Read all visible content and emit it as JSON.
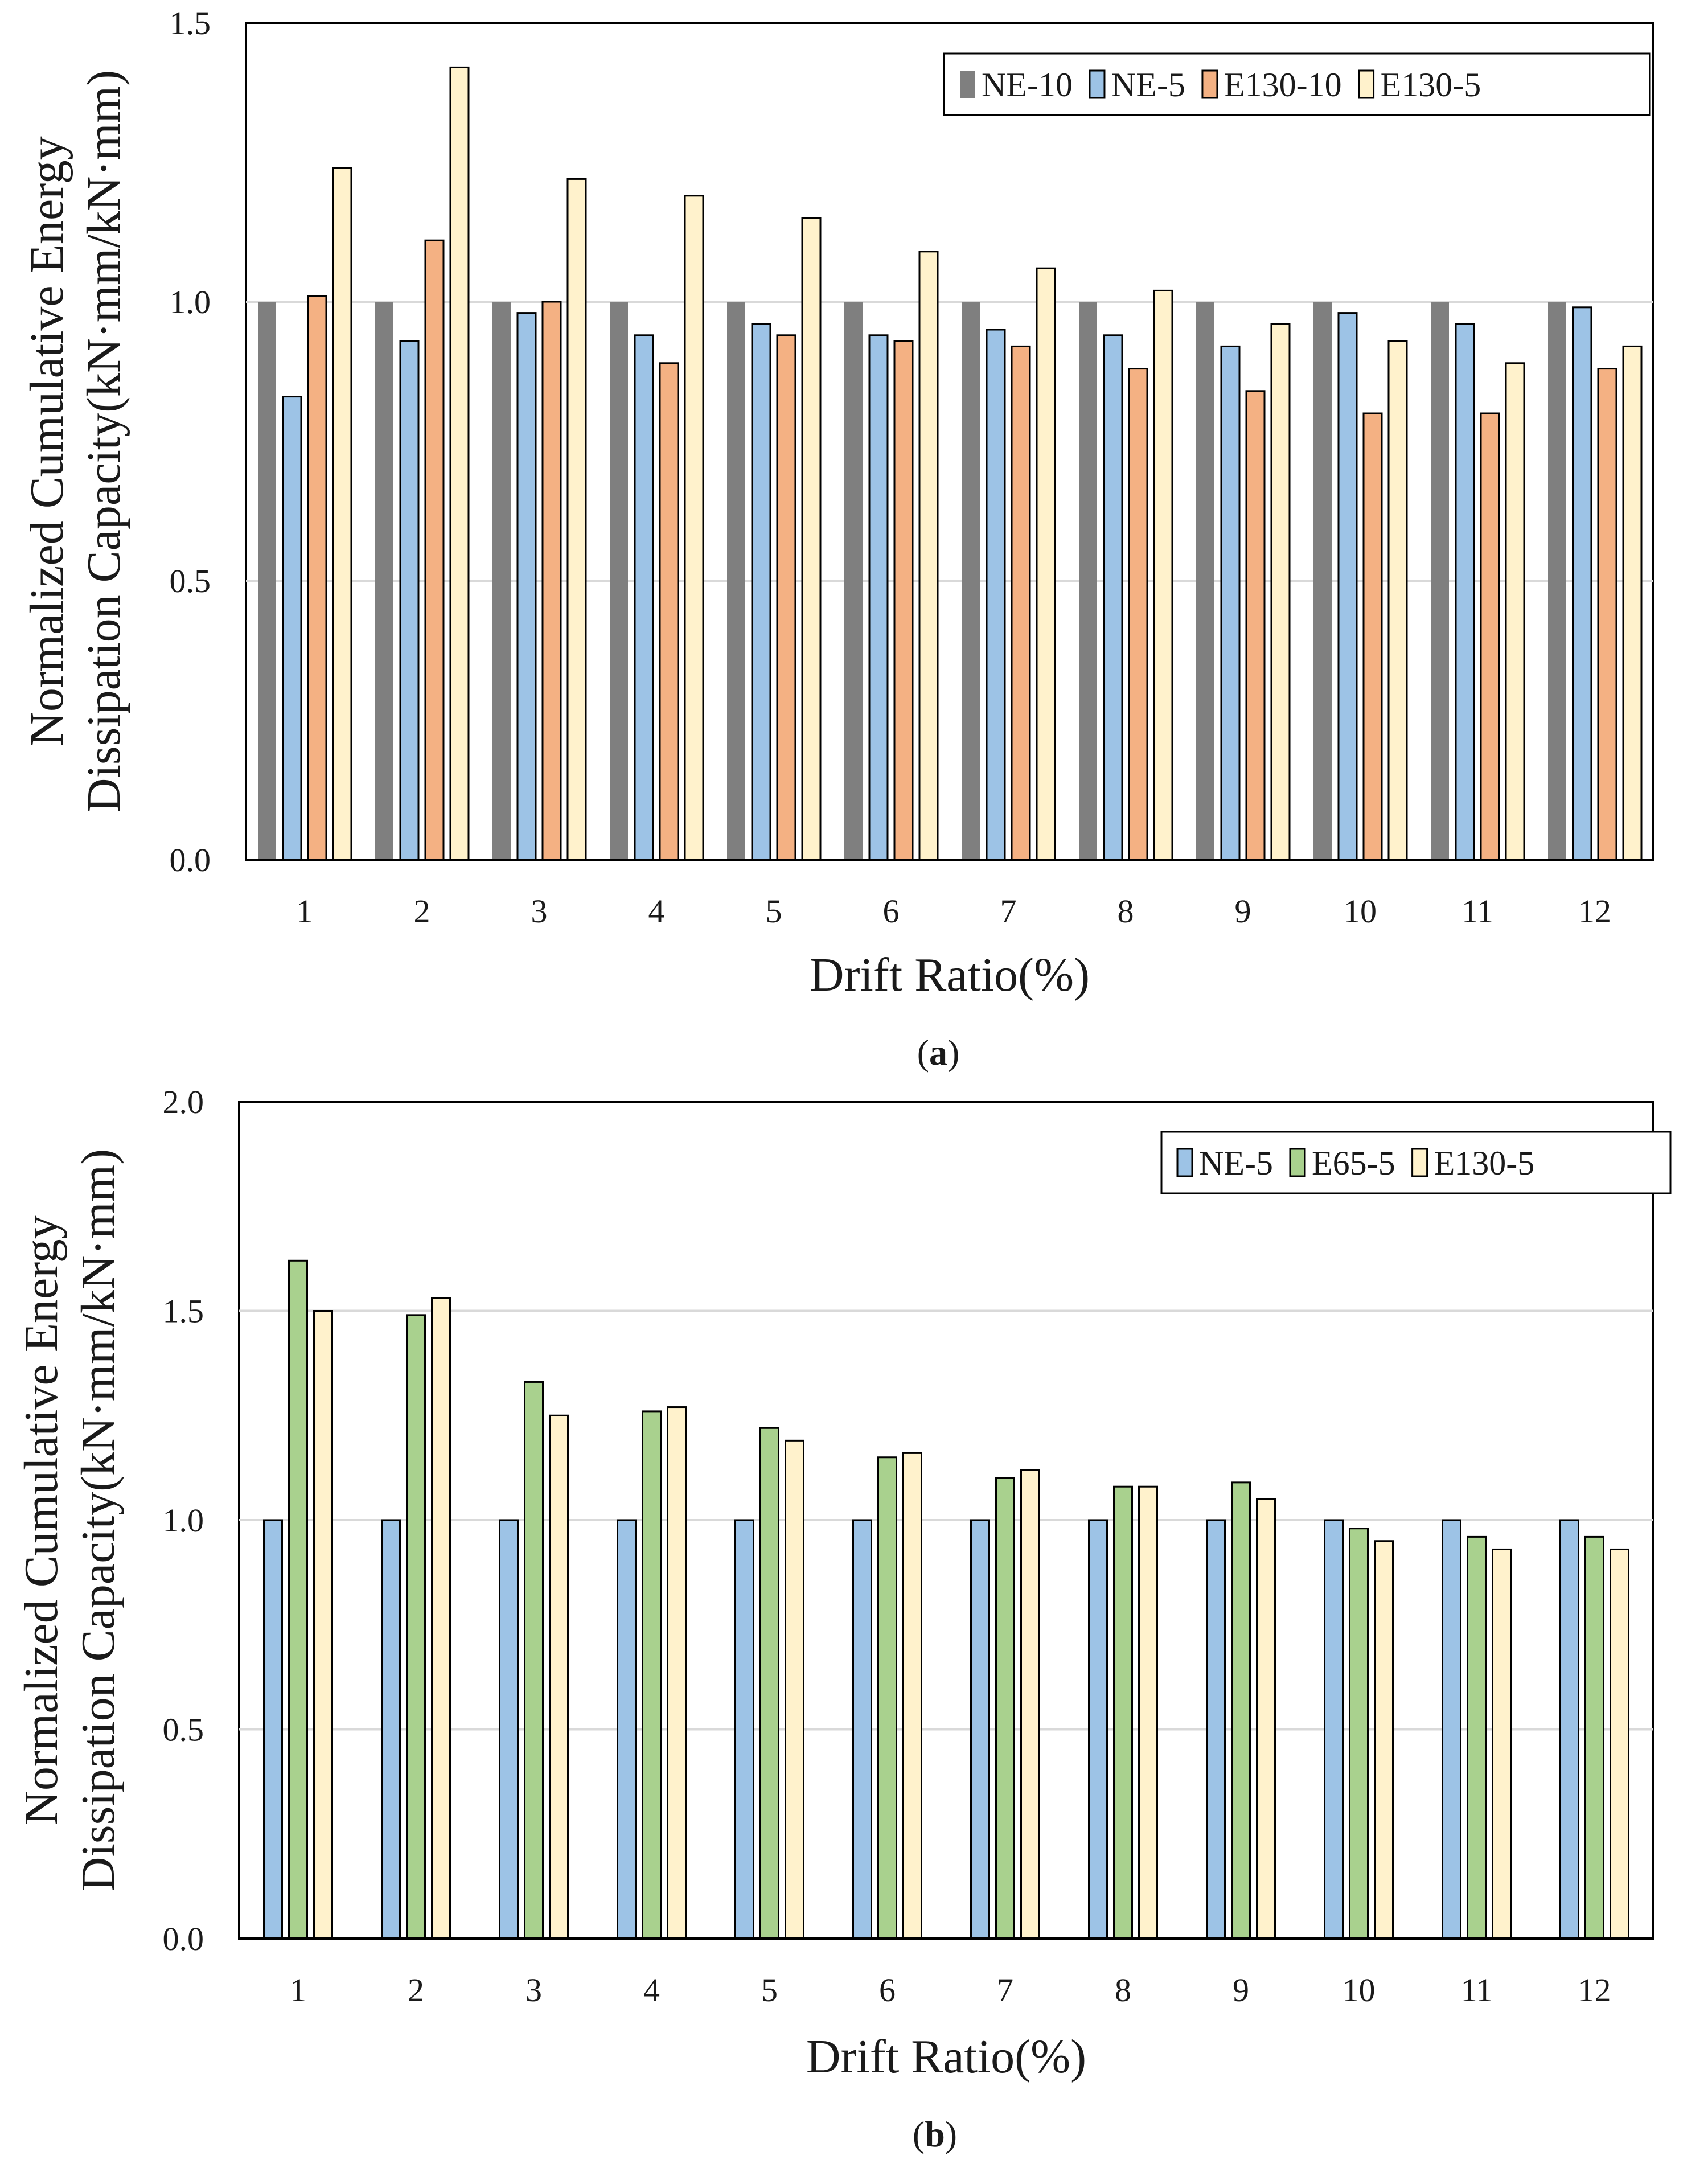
{
  "chart_data": [
    {
      "panel": "a",
      "caption_open": "(",
      "caption_letter": "a",
      "caption_close": ")",
      "type": "bar",
      "categories": [
        "1",
        "2",
        "3",
        "4",
        "5",
        "6",
        "7",
        "8",
        "9",
        "10",
        "11",
        "12"
      ],
      "xlabel": "Drift Ratio(%)",
      "ylabel_line1": "Normalized Cumulative Energy",
      "ylabel_line2": "Dissipation Capacity(kN·mm/kN·mm)",
      "ylim": [
        0,
        1.5
      ],
      "yticks": [
        "0.0",
        "0.5",
        "1.0",
        "1.5"
      ],
      "grid": true,
      "legend_position": "top-right",
      "series": [
        {
          "name": "NE-10",
          "color": "#7f7f7f",
          "values": [
            1.0,
            1.0,
            1.0,
            1.0,
            1.0,
            1.0,
            1.0,
            1.0,
            1.0,
            1.0,
            1.0,
            1.0
          ]
        },
        {
          "name": "NE-5",
          "color": "#9dc3e6",
          "values": [
            0.83,
            0.93,
            0.98,
            0.94,
            0.96,
            0.94,
            0.95,
            0.94,
            0.92,
            0.98,
            0.96,
            0.99
          ]
        },
        {
          "name": "E130-10",
          "color": "#f4b183",
          "values": [
            1.01,
            1.11,
            1.0,
            0.89,
            0.94,
            0.93,
            0.92,
            0.88,
            0.84,
            0.8,
            0.8,
            0.88
          ]
        },
        {
          "name": "E130-5",
          "color": "#fff2cc",
          "values": [
            1.24,
            1.42,
            1.22,
            1.19,
            1.15,
            1.09,
            1.06,
            1.02,
            0.96,
            0.93,
            0.89,
            0.92
          ]
        }
      ]
    },
    {
      "panel": "b",
      "caption_open": "(",
      "caption_letter": "b",
      "caption_close": ")",
      "type": "bar",
      "categories": [
        "1",
        "2",
        "3",
        "4",
        "5",
        "6",
        "7",
        "8",
        "9",
        "10",
        "11",
        "12"
      ],
      "xlabel": "Drift Ratio(%)",
      "ylabel_line1": "Normalized Cumulative Energy",
      "ylabel_line2": "Dissipation Capacity(kN·mm/kN·mm)",
      "ylim": [
        0,
        2.0
      ],
      "yticks": [
        "0.0",
        "0.5",
        "1.0",
        "1.5",
        "2.0"
      ],
      "grid": true,
      "legend_position": "top-right",
      "series": [
        {
          "name": "NE-5",
          "color": "#9dc3e6",
          "values": [
            1.0,
            1.0,
            1.0,
            1.0,
            1.0,
            1.0,
            1.0,
            1.0,
            1.0,
            1.0,
            1.0,
            1.0
          ]
        },
        {
          "name": "E65-5",
          "color": "#a9d18e",
          "values": [
            1.62,
            1.49,
            1.33,
            1.26,
            1.22,
            1.15,
            1.1,
            1.08,
            1.09,
            0.98,
            0.96,
            0.96
          ]
        },
        {
          "name": "E130-5",
          "color": "#fff2cc",
          "values": [
            1.5,
            1.53,
            1.25,
            1.27,
            1.19,
            1.16,
            1.12,
            1.08,
            1.05,
            0.95,
            0.93,
            0.93
          ]
        }
      ]
    }
  ]
}
